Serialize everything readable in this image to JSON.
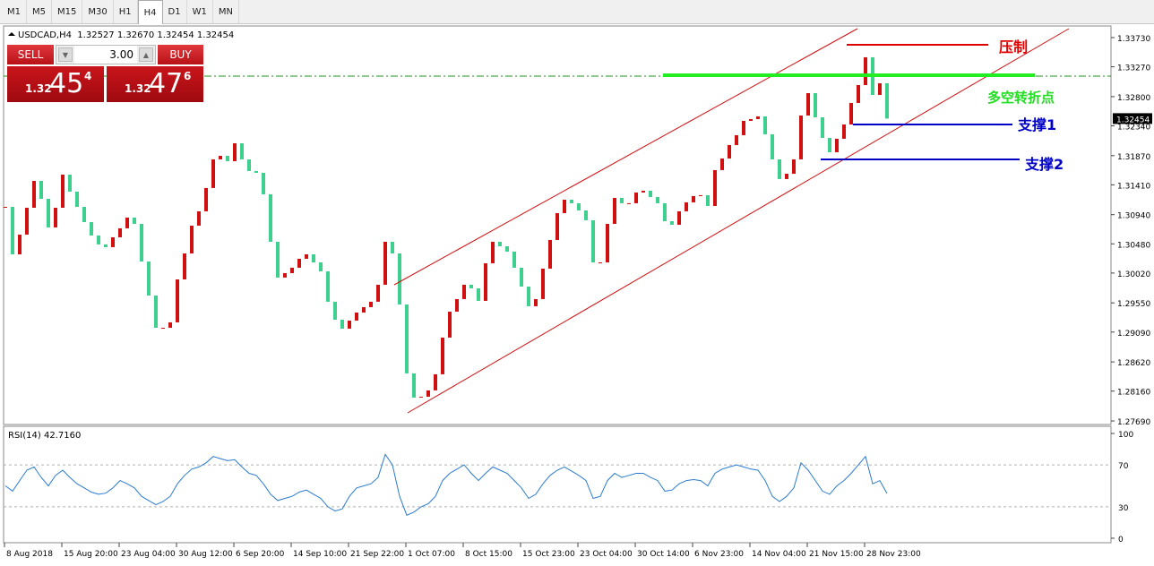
{
  "toolbar": {
    "timeframes": [
      "M1",
      "M5",
      "M15",
      "M30",
      "H1",
      "H4",
      "D1",
      "W1",
      "MN"
    ],
    "active": 5
  },
  "trade_panel": {
    "sell": "SELL",
    "buy": "BUY",
    "lot": "3.00",
    "sell_price": {
      "big": "1.32",
      "pips": "45",
      "point": "4"
    },
    "buy_price": {
      "big": "1.32",
      "pips": "47",
      "point": "6"
    }
  },
  "chart_data": {
    "type": "candlestick",
    "header": "USDCAD,H4  1.32527 1.32670 1.32454 1.32454",
    "closes": [
      1.31063,
      1.30315,
      1.30626,
      1.31049,
      1.31472,
      1.3119,
      1.30739,
      1.31049,
      1.31571,
      1.31303,
      1.31063,
      1.30823,
      1.30612,
      1.30471,
      1.30428,
      1.30583,
      1.30725,
      1.30894,
      1.30795,
      1.30202,
      1.29666,
      1.29158,
      1.29158,
      1.29243,
      1.2992,
      1.30329,
      1.30767,
      1.30993,
      1.3136,
      1.31811,
      1.31867,
      1.31783,
      1.32065,
      1.31811,
      1.31628,
      1.31599,
      1.31261,
      1.30513,
      1.29949,
      1.30019,
      1.30104,
      1.30245,
      1.30315,
      1.30188,
      1.30047,
      1.29568,
      1.29285,
      1.29144,
      1.29271,
      1.29398,
      1.29483,
      1.29568,
      1.29836,
      1.30513,
      1.30329,
      1.29525,
      1.28439,
      1.28058,
      1.28072,
      1.28171,
      1.28425,
      1.29003,
      1.29412,
      1.2961,
      1.29836,
      1.29779,
      1.29582,
      1.30174,
      1.30513,
      1.30442,
      1.30358,
      1.30104,
      1.29807,
      1.29497,
      1.2961,
      1.3009,
      1.30541,
      1.30964,
      1.31176,
      1.3112,
      1.31007,
      1.30852,
      1.30188,
      1.30188,
      1.30795,
      1.31204,
      1.3112,
      1.3112,
      1.31289,
      1.31317,
      1.31218,
      1.3112,
      1.30837,
      1.30781,
      1.30993,
      1.31134,
      1.31233,
      1.31247,
      1.31077,
      1.31642,
      1.31825,
      1.32037,
      1.32192,
      1.32418,
      1.32446,
      1.32488,
      1.32206,
      1.31811,
      1.31501,
      1.31585,
      1.31811,
      1.32502,
      1.32855,
      1.32474,
      1.3215,
      1.31924,
      1.32136,
      1.32361,
      1.327,
      1.32982,
      1.3342,
      1.32827,
      1.3301,
      1.32454
    ],
    "up_color": "#d01010",
    "down_color": "#3ccf8e",
    "ylim": [
      1.33899,
      1.27648
    ],
    "yticks": [
      {
        "value": 1.3373,
        "label": "1.33730"
      },
      {
        "value": 1.3327,
        "label": "1.33270"
      },
      {
        "value": 1.328,
        "label": "1.32800"
      },
      {
        "value": 1.3234,
        "label": "1.32340"
      },
      {
        "value": 1.3187,
        "label": "1.31870"
      },
      {
        "value": 1.3141,
        "label": "1.31410"
      },
      {
        "value": 1.3094,
        "label": "1.30940"
      },
      {
        "value": 1.3048,
        "label": "1.30480"
      },
      {
        "value": 1.3002,
        "label": "1.30020"
      },
      {
        "value": 1.2955,
        "label": "1.29550"
      },
      {
        "value": 1.2909,
        "label": "1.29090"
      },
      {
        "value": 1.2862,
        "label": "1.28620"
      },
      {
        "value": 1.2816,
        "label": "1.28160"
      },
      {
        "value": 1.2769,
        "label": "1.27690"
      }
    ],
    "current_price": 1.32454,
    "time_labels": [
      "8 Aug 2018",
      "15 Aug 20:00",
      "23 Aug 04:00",
      "30 Aug 12:00",
      "6 Sep 20:00",
      "14 Sep 10:00",
      "21 Sep 22:00",
      "1 Oct 07:00",
      "8 Oct 15:00",
      "15 Oct 23:00",
      "23 Oct 04:00",
      "30 Oct 14:00",
      "6 Nov 23:00",
      "14 Nov 04:00",
      "21 Nov 15:00",
      "28 Nov 23:00"
    ],
    "annotations": [
      {
        "text": "压制",
        "color": "#e00000"
      },
      {
        "text": "多空转折点",
        "color": "#22dd22"
      },
      {
        "text": "支撑1",
        "color": "#0000c8"
      },
      {
        "text": "支撑2",
        "color": "#0000c8"
      }
    ],
    "rsi": {
      "label": "RSI(14) 42.7160",
      "color": "#2a7bd0",
      "ylim": [
        0,
        100
      ],
      "yticks": [
        100,
        70,
        30,
        0
      ],
      "values": [
        50,
        45,
        55,
        65,
        68,
        58,
        50,
        60,
        65,
        58,
        52,
        48,
        44,
        42,
        43,
        48,
        55,
        52,
        48,
        40,
        36,
        32,
        35,
        40,
        52,
        60,
        66,
        68,
        72,
        78,
        76,
        74,
        75,
        68,
        62,
        60,
        52,
        42,
        36,
        38,
        40,
        44,
        46,
        42,
        38,
        30,
        26,
        28,
        40,
        48,
        50,
        52,
        58,
        80,
        70,
        40,
        22,
        25,
        30,
        33,
        40,
        55,
        62,
        66,
        70,
        62,
        55,
        62,
        68,
        65,
        62,
        55,
        48,
        38,
        42,
        52,
        60,
        65,
        68,
        64,
        60,
        55,
        38,
        40,
        55,
        62,
        58,
        60,
        62,
        62,
        58,
        55,
        45,
        46,
        52,
        55,
        56,
        55,
        50,
        62,
        66,
        68,
        70,
        68,
        66,
        65,
        55,
        40,
        35,
        40,
        48,
        72,
        65,
        55,
        45,
        42,
        50,
        55,
        62,
        70,
        78,
        52,
        55,
        42.716
      ]
    }
  }
}
